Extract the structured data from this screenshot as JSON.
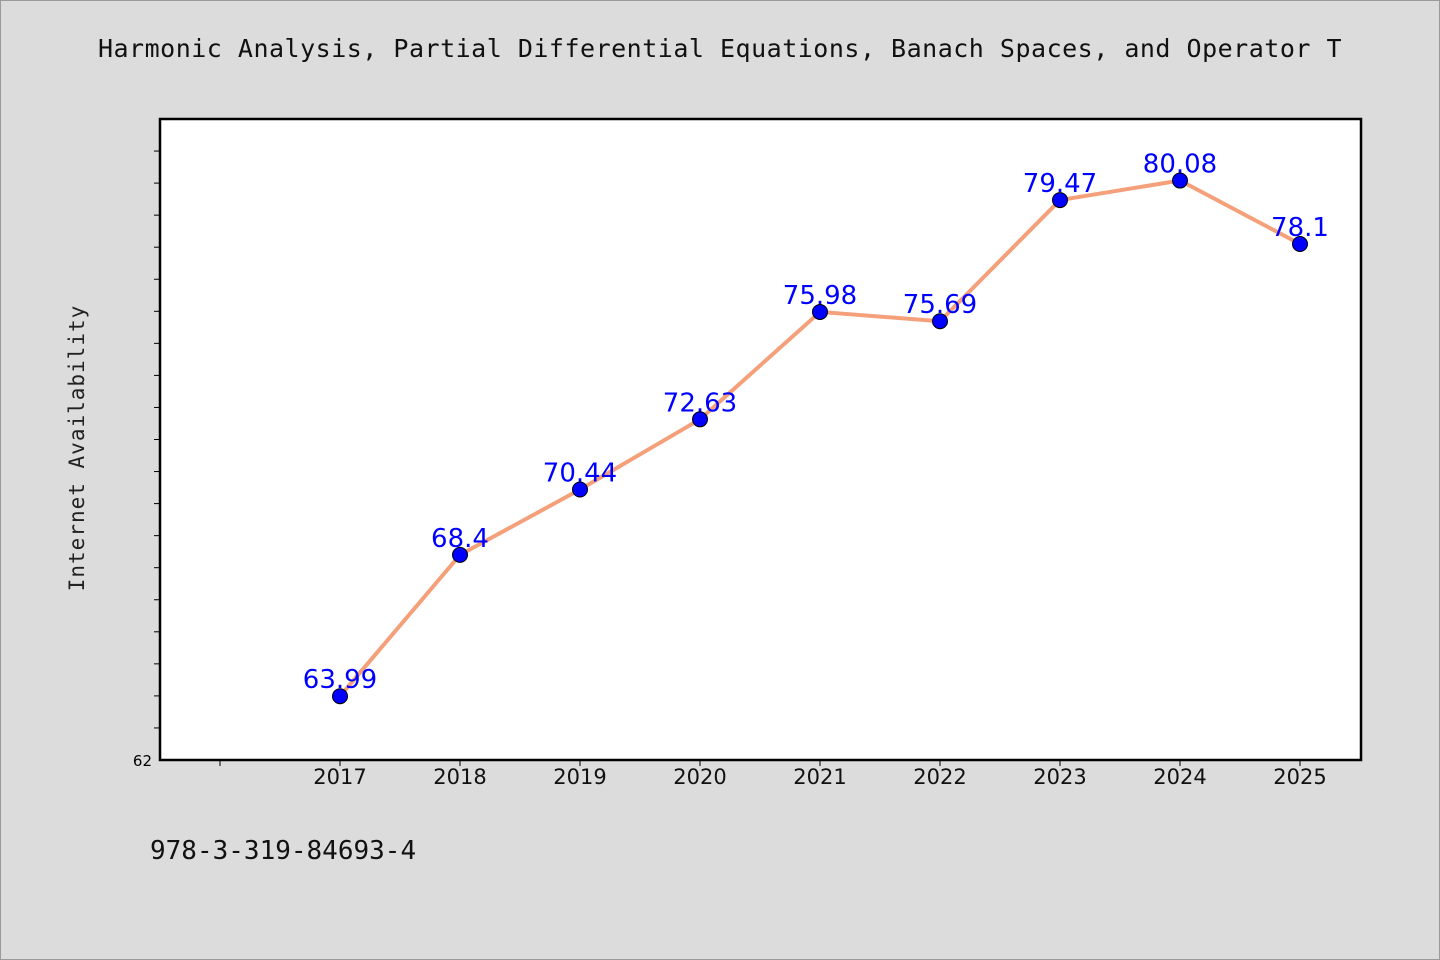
{
  "chart_data": {
    "type": "line",
    "title": "Harmonic Analysis, Partial Differential Equations, Banach Spaces, and Operator T",
    "xlabel": "",
    "ylabel": "Internet Availability",
    "categories": [
      "2017",
      "2018",
      "2019",
      "2020",
      "2021",
      "2022",
      "2023",
      "2024",
      "2025"
    ],
    "series": [
      {
        "values": [
          63.99,
          68.4,
          70.44,
          72.63,
          75.98,
          75.69,
          79.47,
          80.08,
          78.1
        ],
        "labels": [
          "63.99",
          "68.4",
          "70.44",
          "72.63",
          "75.98",
          "75.69",
          "79.47",
          "80.08",
          "78.1"
        ]
      }
    ],
    "ylim": [
      62,
      82
    ],
    "y_tick_labels": [
      "62"
    ],
    "grid": false,
    "legend": "none",
    "colors": {
      "line": "#f4a07a",
      "marker": "#0000ff",
      "label": "#0000ff",
      "axes": "#000000",
      "plot_bg": "#ffffff",
      "page_bg": "#dcdcdc"
    }
  },
  "footer": {
    "code": "978-3-319-84693-4"
  }
}
